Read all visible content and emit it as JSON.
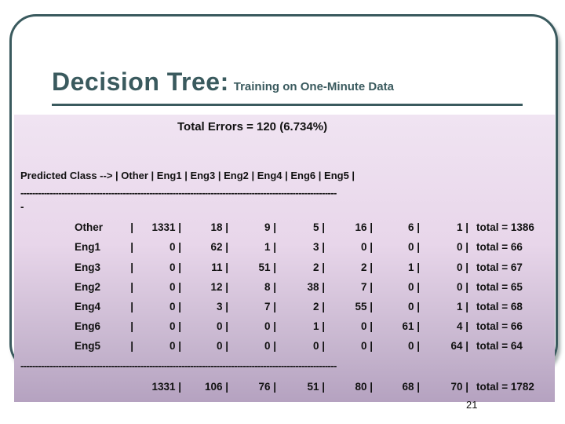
{
  "slide": {
    "title": "Decision Tree:",
    "subtitle": "Training on One-Minute Data",
    "total_errors": "Total Errors  = 120 (6.734%)",
    "header_line": "Predicted Class --> | Other  | Eng1   | Eng3   | Eng2  | Eng4   | Eng6  | Eng5  |",
    "dash_line": "------------------------------------------------------------------------------------------------------------",
    "dash_stub": "-",
    "rows": [
      {
        "label": "Other",
        "cells": [
          "|",
          "1331 |",
          "18 |",
          "9 |",
          "5 |",
          "16 |",
          "6 |",
          "1 |"
        ],
        "total": "total = 1386"
      },
      {
        "label": "Eng1",
        "cells": [
          "|",
          "0 |",
          "62 |",
          "1 |",
          "3 |",
          "0 |",
          "0 |",
          "0 |"
        ],
        "total": "total = 66"
      },
      {
        "label": "Eng3",
        "cells": [
          "|",
          "0 |",
          "11 |",
          "51 |",
          "2 |",
          "2 |",
          "1 |",
          "0 |"
        ],
        "total": "total = 67"
      },
      {
        "label": "Eng2",
        "cells": [
          "|",
          "0 |",
          "12 |",
          "8 |",
          "38 |",
          "7 |",
          "0 |",
          "0 |"
        ],
        "total": "total = 65"
      },
      {
        "label": "Eng4",
        "cells": [
          "|",
          "0 |",
          "3 |",
          "7 |",
          "2 |",
          "55 |",
          "0 |",
          "1 |"
        ],
        "total": "total = 68"
      },
      {
        "label": "Eng6",
        "cells": [
          "|",
          "0 |",
          "0 |",
          "0 |",
          "1 |",
          "0 |",
          "61 |",
          "4 |"
        ],
        "total": "total = 66"
      },
      {
        "label": "Eng5",
        "cells": [
          "|",
          "0 |",
          "0 |",
          "0 |",
          "0 |",
          "0 |",
          "0 |",
          "64 |"
        ],
        "total": "total = 64"
      }
    ],
    "totals_row": {
      "cells": [
        "1331 |",
        "106 |",
        "76 |",
        "51 |",
        "80 |",
        "68 |",
        "70 |"
      ],
      "total": "total = 1782"
    },
    "page_number": "21"
  }
}
